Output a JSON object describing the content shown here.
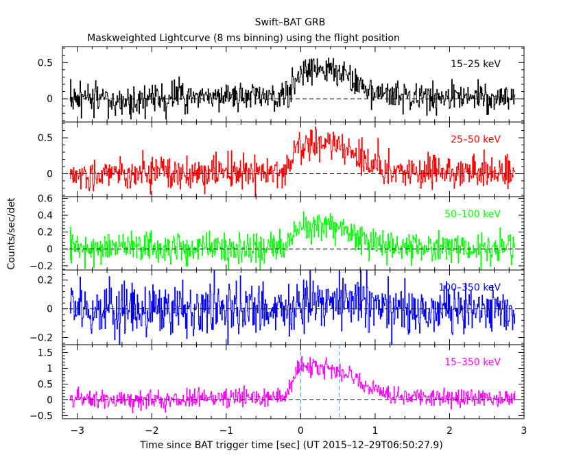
{
  "figure": {
    "title": "Swift–BAT GRB",
    "subtitle": "Maskweighted Lightcurve (8 ms binning) using the flight position",
    "ylabel": "Counts/sec/det",
    "xlabel": "Time since BAT trigger time [sec] (UT 2015–12–29T06:50:27.9)"
  },
  "chart_data": [
    {
      "type": "line",
      "name": "15–25 keV",
      "color": "#000000",
      "xlim": [
        -3.2,
        3.0
      ],
      "ylim": [
        -0.32,
        0.72
      ],
      "yticks": [
        0,
        0.5
      ],
      "ytick_labels": [
        "0",
        "0.5"
      ],
      "baseline": 0,
      "noise_std": 0.1,
      "x": [
        -3.1,
        -1.0,
        -0.2,
        -0.05,
        0.1,
        0.3,
        0.5,
        0.7,
        0.9,
        1.2,
        1.6,
        2.0,
        2.5,
        2.88
      ],
      "y": [
        0.0,
        0.02,
        0.05,
        0.3,
        0.42,
        0.4,
        0.35,
        0.25,
        0.12,
        0.05,
        0.03,
        0.02,
        0.02,
        0.0
      ]
    },
    {
      "type": "line",
      "name": "25–50 keV",
      "color": "#ff0000",
      "xlim": [
        -3.2,
        3.0
      ],
      "ylim": [
        -0.32,
        0.72
      ],
      "yticks": [
        0,
        0.5
      ],
      "ytick_labels": [
        "0",
        "0.5"
      ],
      "baseline": 0,
      "noise_std": 0.11,
      "x": [
        -3.1,
        -1.0,
        -0.2,
        -0.05,
        0.1,
        0.3,
        0.5,
        0.7,
        0.9,
        1.2,
        1.6,
        2.0,
        2.5,
        2.88
      ],
      "y": [
        0.0,
        0.02,
        0.05,
        0.33,
        0.42,
        0.42,
        0.38,
        0.3,
        0.15,
        0.05,
        0.03,
        0.02,
        0.02,
        0.0
      ]
    },
    {
      "type": "line",
      "name": "50–100 keV",
      "color": "#00ff00",
      "xlim": [
        -3.2,
        3.0
      ],
      "ylim": [
        -0.25,
        0.62
      ],
      "yticks": [
        -0.2,
        0,
        0.2,
        0.4,
        0.6
      ],
      "ytick_labels": [
        "−0.2",
        "0",
        "0.2",
        "0.4",
        "0.6"
      ],
      "baseline": 0,
      "noise_std": 0.09,
      "x": [
        -3.1,
        -1.0,
        -0.2,
        -0.05,
        0.1,
        0.3,
        0.5,
        0.7,
        0.9,
        1.2,
        1.6,
        2.0,
        2.5,
        2.88
      ],
      "y": [
        0.0,
        0.01,
        0.03,
        0.2,
        0.28,
        0.3,
        0.27,
        0.2,
        0.08,
        0.03,
        0.02,
        0.01,
        0.01,
        0.0
      ]
    },
    {
      "type": "line",
      "name": "100–350 keV",
      "color": "#0000ff",
      "xlim": [
        -3.2,
        3.0
      ],
      "ylim": [
        -0.25,
        0.27
      ],
      "yticks": [
        -0.2,
        0,
        0.2
      ],
      "ytick_labels": [
        "−0.2",
        "0",
        "0.2"
      ],
      "baseline": 0,
      "noise_std": 0.09,
      "x": [
        -3.1,
        -1.0,
        -0.2,
        -0.05,
        0.1,
        0.3,
        0.5,
        0.7,
        0.9,
        1.2,
        1.6,
        2.0,
        2.5,
        2.88
      ],
      "y": [
        0.0,
        0.0,
        0.01,
        0.04,
        0.05,
        0.05,
        0.04,
        0.03,
        0.02,
        0.01,
        0.0,
        0.0,
        0.0,
        0.0
      ]
    },
    {
      "type": "line",
      "name": "15–350 keV",
      "color": "#ff00ff",
      "xlim": [
        -3.2,
        3.0
      ],
      "ylim": [
        -0.6,
        1.75
      ],
      "yticks": [
        -0.5,
        0,
        0.5,
        1,
        1.5
      ],
      "ytick_labels": [
        "−0.5",
        "0",
        "0.5",
        "1",
        "1.5"
      ],
      "xticks": [
        -3,
        -2,
        -1,
        0,
        1,
        2,
        3
      ],
      "xtick_labels": [
        "−3",
        "−2",
        "−1",
        "0",
        "1",
        "2",
        "3"
      ],
      "baseline": 0,
      "noise_std": 0.15,
      "markers": [
        0.0,
        0.52
      ],
      "x": [
        -3.1,
        -1.0,
        -0.2,
        -0.05,
        0.1,
        0.3,
        0.5,
        0.7,
        0.9,
        1.2,
        1.6,
        2.0,
        2.5,
        2.88
      ],
      "y": [
        0.0,
        0.03,
        0.1,
        0.9,
        1.05,
        1.05,
        0.95,
        0.7,
        0.35,
        0.12,
        0.08,
        0.05,
        0.04,
        0.0
      ]
    }
  ]
}
